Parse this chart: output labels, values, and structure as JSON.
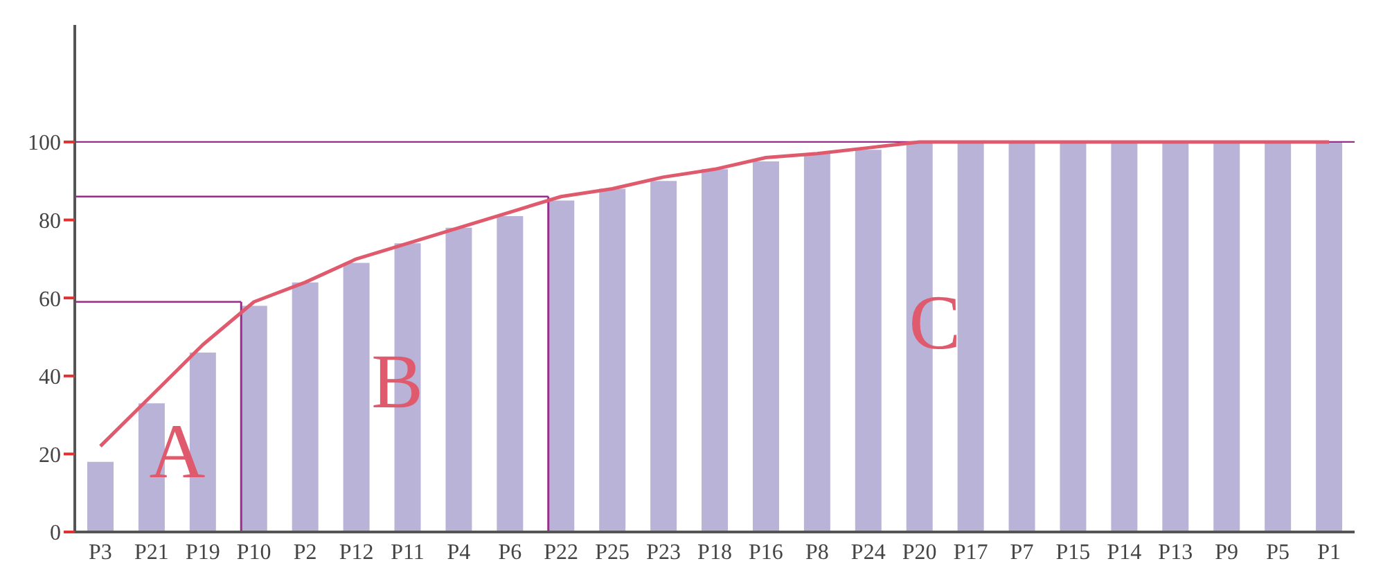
{
  "chart_data": {
    "type": "bar",
    "categories": [
      "P3",
      "P21",
      "P19",
      "P10",
      "P2",
      "P12",
      "P11",
      "P4",
      "P6",
      "P22",
      "P25",
      "P23",
      "P18",
      "P16",
      "P8",
      "P24",
      "P20",
      "P17",
      "P7",
      "P15",
      "P14",
      "P13",
      "P9",
      "P5",
      "P1"
    ],
    "series": [
      {
        "color": "#b8b3d7",
        "values": [
          18,
          33,
          46,
          58,
          64,
          69,
          74,
          78,
          81,
          85,
          88,
          90,
          93,
          95,
          97,
          98,
          100,
          100,
          100,
          100,
          100,
          100,
          100,
          100,
          100
        ]
      },
      {
        "type": "line",
        "color": "#e05a6e",
        "values": [
          22,
          35,
          48,
          59,
          64,
          70,
          74,
          78,
          82,
          86,
          88,
          91,
          93,
          96,
          97,
          98.5,
          100,
          100,
          100,
          100,
          100,
          100,
          100,
          100,
          100
        ]
      }
    ],
    "ylim": [
      0,
      130
    ],
    "yticks": [
      0,
      20,
      40,
      60,
      80,
      100
    ],
    "grid": false,
    "legend": false,
    "marker": "none",
    "ref_lines": [
      {
        "axis": "y",
        "value": 59,
        "color": "#9b2d8a"
      },
      {
        "axis": "y",
        "value": 86,
        "color": "#9b2d8a"
      },
      {
        "axis": "y",
        "value": 100,
        "color": "#9b2d8a"
      },
      {
        "axis": "x",
        "value": "P10",
        "color": "#9b2d8a"
      },
      {
        "axis": "x",
        "value": "P22",
        "color": "#9b2d8a"
      }
    ],
    "annotations": [
      "A",
      "B",
      "C"
    ]
  }
}
